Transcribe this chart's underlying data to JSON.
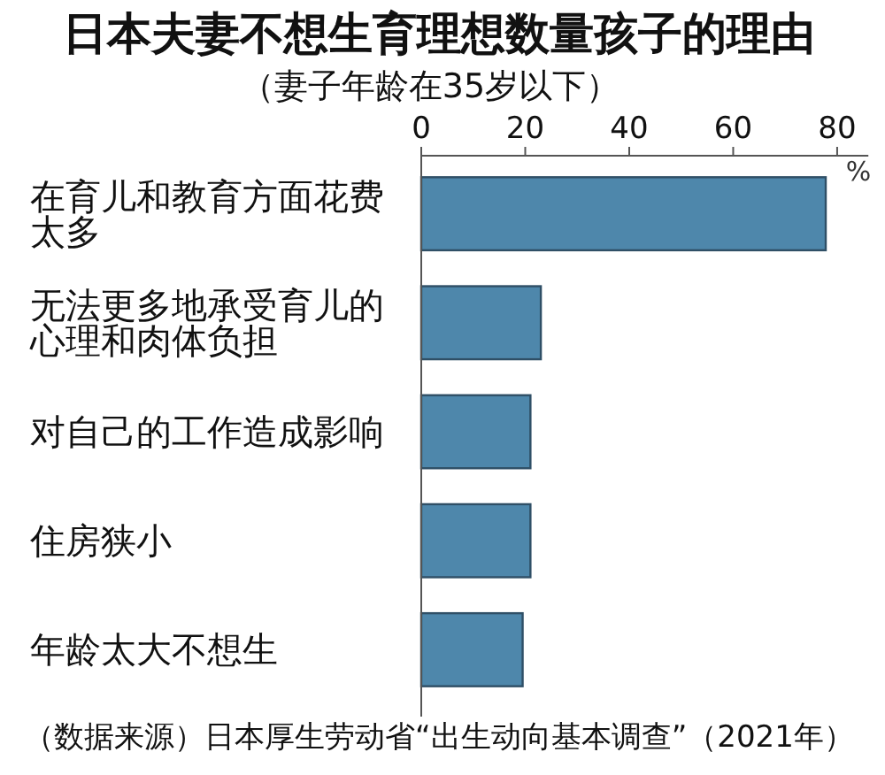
{
  "chart_data": {
    "type": "bar",
    "orientation": "horizontal",
    "title": "日本夫妻不想生育理想数量孩子的理由",
    "subtitle": "（妻子年龄在35岁以下）",
    "xlabel": "%",
    "categories": [
      "在育儿和教育方面花费太多",
      "无法更多地承受育儿的心理和肉体负担",
      "对自己的工作造成影响",
      "住房狭小",
      "年龄太大不想生"
    ],
    "values": [
      77.8,
      23,
      21,
      21,
      19.5
    ],
    "color": "#4e87ab",
    "xlim": [
      0,
      86
    ],
    "xticks": [
      0,
      20,
      40,
      60,
      80
    ],
    "annotations": [
      "（数据来源）日本厚生劳动省“出生动向基本调查”（2021年）"
    ]
  }
}
